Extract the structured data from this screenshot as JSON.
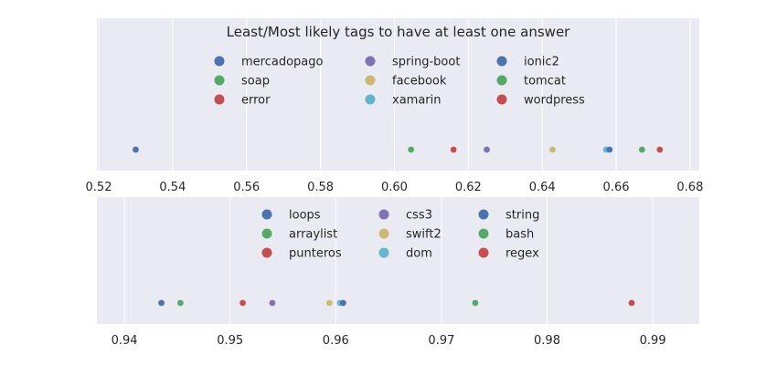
{
  "chart_data": [
    {
      "type": "scatter",
      "title": "Least/Most likely tags to have at least one answer",
      "xlabel": "",
      "ylabel": "",
      "xlim": [
        0.5195,
        0.6825
      ],
      "xticks": [
        0.52,
        0.54,
        0.56,
        0.58,
        0.6,
        0.62,
        0.64,
        0.66,
        0.68
      ],
      "xtick_labels": [
        "0.52",
        "0.54",
        "0.56",
        "0.58",
        "0.60",
        "0.62",
        "0.64",
        "0.66",
        "0.68"
      ],
      "grid": true,
      "legend_position": "top-center",
      "series": [
        {
          "name": "mercadopago",
          "x": 0.53,
          "color": "#4c72b0"
        },
        {
          "name": "soap",
          "x": 0.6045,
          "color": "#55a868"
        },
        {
          "name": "error",
          "x": 0.616,
          "color": "#c44e52"
        },
        {
          "name": "spring-boot",
          "x": 0.625,
          "color": "#8172b2"
        },
        {
          "name": "facebook",
          "x": 0.6428,
          "color": "#ccb974"
        },
        {
          "name": "xamarin",
          "x": 0.6573,
          "color": "#64b5cd"
        },
        {
          "name": "ionic2",
          "x": 0.6582,
          "color": "#4c72b0"
        },
        {
          "name": "tomcat",
          "x": 0.667,
          "color": "#55a868"
        },
        {
          "name": "wordpress",
          "x": 0.6718,
          "color": "#c44e52"
        }
      ]
    },
    {
      "type": "scatter",
      "title": "",
      "xlabel": "",
      "ylabel": "",
      "xlim": [
        0.9374,
        0.9944
      ],
      "xticks": [
        0.94,
        0.95,
        0.96,
        0.97,
        0.98,
        0.99
      ],
      "xtick_labels": [
        "0.94",
        "0.95",
        "0.96",
        "0.97",
        "0.98",
        "0.99"
      ],
      "grid": true,
      "legend_position": "top-center",
      "series": [
        {
          "name": "loops",
          "x": 0.9435,
          "color": "#4c72b0"
        },
        {
          "name": "arraylist",
          "x": 0.9453,
          "color": "#55a868"
        },
        {
          "name": "punteros",
          "x": 0.9512,
          "color": "#c44e52"
        },
        {
          "name": "css3",
          "x": 0.954,
          "color": "#8172b2"
        },
        {
          "name": "swift2",
          "x": 0.9594,
          "color": "#ccb974"
        },
        {
          "name": "dom",
          "x": 0.9604,
          "color": "#64b5cd"
        },
        {
          "name": "string",
          "x": 0.9607,
          "color": "#4c72b0"
        },
        {
          "name": "bash",
          "x": 0.9732,
          "color": "#55a868"
        },
        {
          "name": "regex",
          "x": 0.988,
          "color": "#c44e52"
        }
      ]
    }
  ]
}
